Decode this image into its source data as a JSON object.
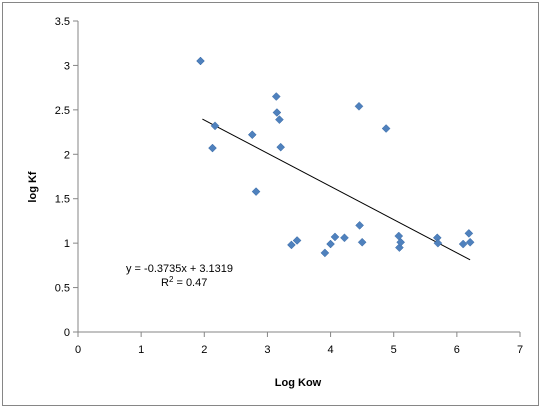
{
  "chart_data": {
    "type": "scatter",
    "xlabel": "Log Kow",
    "ylabel": "log Kf",
    "xlim": [
      0,
      7
    ],
    "ylim": [
      0,
      3.5
    ],
    "x_ticks": [
      0,
      1,
      2,
      3,
      4,
      5,
      6,
      7
    ],
    "y_ticks": [
      0,
      0.5,
      1,
      1.5,
      2,
      2.5,
      3,
      3.5
    ],
    "x_tick_labels": [
      "0",
      "1",
      "2",
      "3",
      "4",
      "5",
      "6",
      "7"
    ],
    "y_tick_labels": [
      "0",
      "0.5",
      "1",
      "1.5",
      "2",
      "2.5",
      "3",
      "3.5"
    ],
    "grid": false,
    "marker": "diamond",
    "marker_color": "#4F81BD",
    "trendline_color": "#000000",
    "series": [
      {
        "points": [
          [
            1.94,
            3.05
          ],
          [
            2.17,
            2.32
          ],
          [
            2.13,
            2.07
          ],
          [
            2.76,
            2.22
          ],
          [
            2.82,
            1.58
          ],
          [
            3.14,
            2.65
          ],
          [
            3.15,
            2.47
          ],
          [
            3.19,
            2.39
          ],
          [
            3.21,
            2.08
          ],
          [
            3.38,
            0.98
          ],
          [
            3.47,
            1.03
          ],
          [
            3.91,
            0.89
          ],
          [
            4.0,
            0.99
          ],
          [
            4.07,
            1.07
          ],
          [
            4.22,
            1.06
          ],
          [
            4.45,
            2.54
          ],
          [
            4.46,
            1.2
          ],
          [
            4.5,
            1.01
          ],
          [
            4.88,
            2.29
          ],
          [
            5.08,
            1.08
          ],
          [
            5.09,
            0.95
          ],
          [
            5.11,
            1.01
          ],
          [
            5.69,
            1.06
          ],
          [
            5.7,
            1.0
          ],
          [
            6.1,
            0.99
          ],
          [
            6.19,
            1.11
          ],
          [
            6.21,
            1.01
          ]
        ]
      }
    ],
    "trendline": {
      "slope": -0.3735,
      "intercept": 3.1319,
      "x_range": [
        1.97,
        6.21
      ]
    },
    "annotations": {
      "equation": "y = -0.3735x + 3.1319",
      "r2_prefix": "R",
      "r2_exponent": "2",
      "r2_suffix": " = 0.47"
    }
  }
}
